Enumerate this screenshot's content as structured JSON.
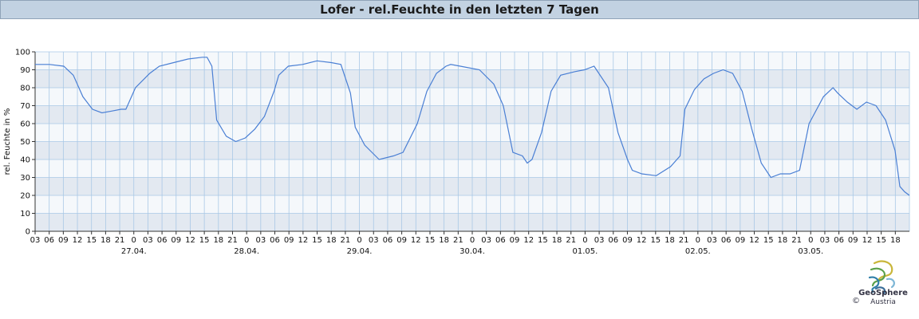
{
  "title": "Lofer - rel.Feuchte in den letzten 7 Tagen",
  "logo": {
    "name": "GeoSphere",
    "sub": "Austria",
    "copyright": "©"
  },
  "colors": {
    "line": "#4a7fd4",
    "band_dark": "#e3e9f1",
    "band_light": "#f5f8fb",
    "grid": "#a9c8e6",
    "title_bg": "#c2d2e2"
  },
  "chart_data": {
    "type": "line",
    "title": "Lofer - rel.Feuchte in den letzten 7 Tagen",
    "xlabel": "",
    "ylabel": "rel. Feuchte in %",
    "ylim": [
      0,
      100
    ],
    "yticks": [
      0,
      10,
      20,
      30,
      40,
      50,
      60,
      70,
      80,
      90,
      100
    ],
    "xlim_hours": [
      0,
      183
    ],
    "x_tick_labels": [
      "03",
      "06",
      "09",
      "12",
      "15",
      "18",
      "21",
      "0",
      "03",
      "06",
      "09",
      "12",
      "15",
      "18",
      "21",
      "0",
      "03",
      "06",
      "09",
      "12",
      "15",
      "18",
      "21",
      "0",
      "03",
      "06",
      "09",
      "12",
      "15",
      "18",
      "21",
      "0",
      "03",
      "06",
      "09",
      "12",
      "15",
      "18",
      "21",
      "0",
      "03",
      "06",
      "09",
      "12",
      "15",
      "18",
      "21",
      "0",
      "03",
      "06",
      "09",
      "12",
      "15",
      "18",
      "21",
      "0",
      "03",
      "06",
      "09",
      "12",
      "15",
      "18"
    ],
    "date_labels": [
      "27.04.",
      "28.04.",
      "29.04.",
      "30.04.",
      "01.05.",
      "02.05.",
      "03.05."
    ],
    "grid": true,
    "series": [
      {
        "x": [
          0,
          3,
          6,
          8,
          10,
          12,
          14,
          16,
          18,
          19,
          21,
          24,
          26,
          29,
          32,
          35,
          36,
          37,
          38,
          40,
          42,
          44,
          46,
          48,
          50,
          51,
          53,
          56,
          59,
          62,
          64,
          66,
          67,
          69,
          72,
          75,
          77,
          80,
          82,
          84,
          86,
          87,
          89,
          93,
          96,
          98,
          100,
          102,
          103,
          104,
          106,
          108,
          110,
          113,
          115,
          117,
          120,
          122,
          124,
          125,
          127,
          130,
          133,
          135,
          136,
          138,
          140,
          142,
          144,
          146,
          148,
          150,
          152,
          154,
          156,
          158,
          160,
          162,
          165,
          167,
          168,
          170,
          172,
          174,
          176,
          178,
          180,
          181,
          182,
          183
        ],
        "y": [
          93,
          93,
          92,
          87,
          75,
          68,
          66,
          67,
          68,
          68,
          80,
          88,
          92,
          94,
          96,
          97,
          97,
          92,
          62,
          53,
          50,
          52,
          57,
          64,
          78,
          87,
          92,
          93,
          95,
          94,
          93,
          77,
          58,
          48,
          40,
          42,
          44,
          60,
          78,
          88,
          92,
          93,
          92,
          90,
          82,
          70,
          44,
          42,
          38,
          40,
          55,
          78,
          87,
          89,
          90,
          92,
          80,
          55,
          40,
          34,
          32,
          31,
          36,
          42,
          68,
          79,
          85,
          88,
          90,
          88,
          78,
          57,
          38,
          30,
          32,
          32,
          34,
          60,
          75,
          80,
          77,
          72,
          68,
          72,
          70,
          62,
          45,
          25,
          22,
          20
        ]
      }
    ]
  }
}
